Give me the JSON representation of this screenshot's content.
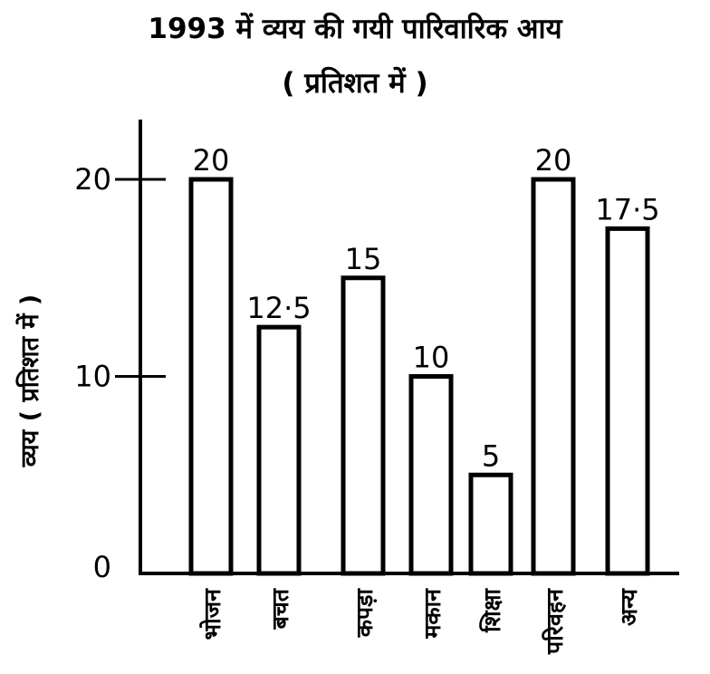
{
  "chart_data": {
    "type": "bar",
    "title": "1993 में व्यय की गयी पारिवारिक आय",
    "subtitle": "( प्रतिशत में )",
    "ylabel": "व्यय ( प्रतिशत में )",
    "xlabel": "",
    "categories": [
      "भोजन",
      "बचत",
      "कपड़ा",
      "मकान",
      "शिक्षा",
      "परिवहन",
      "अन्य"
    ],
    "values": [
      20,
      12.5,
      15,
      10,
      5,
      20,
      17.5
    ],
    "value_labels": [
      "20",
      "12·5",
      "15",
      "10",
      "5",
      "20",
      "17·5"
    ],
    "yticks": [
      0,
      10,
      20
    ],
    "ytick_labels": [
      "0",
      "10",
      "20"
    ],
    "ylim": [
      0,
      21
    ],
    "grid": false,
    "bar_fill": "#ffffff",
    "bar_stroke": "#000000"
  }
}
